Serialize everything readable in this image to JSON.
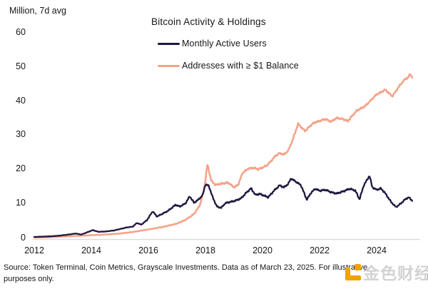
{
  "header": {
    "unit_label": "Million, 7d avg",
    "title": "Bitcoin Activity & Holdings"
  },
  "legend": {
    "items": [
      {
        "label": "Monthly Active Users",
        "color": "#201640"
      },
      {
        "label": "Addresses with ≥ $1 Balance",
        "color": "#f5a287"
      }
    ]
  },
  "footer": {
    "source": "Source: Token Terminal, Coin Metrics, Grayscale Investments. Data as of March 23, 2025. For illustrative purposes only."
  },
  "watermark": {
    "text": "金色财经",
    "logo_color": "#f1a208"
  },
  "chart_data": {
    "type": "line",
    "title": "Bitcoin Activity & Holdings",
    "ylabel": "Million, 7d avg",
    "xlabel": "",
    "grid": false,
    "legend_position": "top-center",
    "xlim": [
      2012,
      2025.4
    ],
    "ylim": [
      0,
      60
    ],
    "x_ticks": [
      2012,
      2014,
      2016,
      2018,
      2020,
      2022,
      2024
    ],
    "y_ticks": [
      0,
      10,
      20,
      30,
      40,
      50,
      60
    ],
    "axis_line_color": "#dcdcdc",
    "series": [
      {
        "name": "Monthly Active Users",
        "color": "#201640",
        "points": [
          [
            2012.0,
            0.3
          ],
          [
            2012.3,
            0.4
          ],
          [
            2012.6,
            0.5
          ],
          [
            2012.9,
            0.7
          ],
          [
            2013.2,
            1.0
          ],
          [
            2013.45,
            1.3
          ],
          [
            2013.65,
            1.0
          ],
          [
            2013.9,
            1.8
          ],
          [
            2014.05,
            2.3
          ],
          [
            2014.25,
            1.8
          ],
          [
            2014.5,
            1.9
          ],
          [
            2014.8,
            2.2
          ],
          [
            2015.0,
            2.6
          ],
          [
            2015.25,
            3.1
          ],
          [
            2015.45,
            3.3
          ],
          [
            2015.6,
            4.4
          ],
          [
            2015.75,
            3.9
          ],
          [
            2015.95,
            5.2
          ],
          [
            2016.15,
            7.8
          ],
          [
            2016.3,
            6.3
          ],
          [
            2016.5,
            7.1
          ],
          [
            2016.7,
            8.0
          ],
          [
            2016.85,
            9.0
          ],
          [
            2016.95,
            9.7
          ],
          [
            2017.1,
            9.2
          ],
          [
            2017.3,
            10.1
          ],
          [
            2017.45,
            12.2
          ],
          [
            2017.6,
            10.3
          ],
          [
            2017.75,
            11.2
          ],
          [
            2017.9,
            12.5
          ],
          [
            2018.0,
            15.7
          ],
          [
            2018.12,
            15.2
          ],
          [
            2018.25,
            12.0
          ],
          [
            2018.4,
            9.2
          ],
          [
            2018.55,
            8.8
          ],
          [
            2018.7,
            10.2
          ],
          [
            2018.9,
            10.6
          ],
          [
            2019.05,
            10.9
          ],
          [
            2019.25,
            11.6
          ],
          [
            2019.45,
            13.4
          ],
          [
            2019.6,
            14.5
          ],
          [
            2019.75,
            12.6
          ],
          [
            2019.9,
            12.9
          ],
          [
            2020.05,
            12.4
          ],
          [
            2020.2,
            11.9
          ],
          [
            2020.4,
            13.8
          ],
          [
            2020.6,
            15.4
          ],
          [
            2020.75,
            14.8
          ],
          [
            2020.9,
            15.8
          ],
          [
            2021.0,
            17.4
          ],
          [
            2021.2,
            16.3
          ],
          [
            2021.35,
            15.4
          ],
          [
            2021.55,
            11.2
          ],
          [
            2021.7,
            13.2
          ],
          [
            2021.85,
            14.4
          ],
          [
            2022.0,
            13.8
          ],
          [
            2022.2,
            14.1
          ],
          [
            2022.4,
            13.4
          ],
          [
            2022.6,
            13.0
          ],
          [
            2022.85,
            13.7
          ],
          [
            2023.05,
            14.4
          ],
          [
            2023.25,
            13.9
          ],
          [
            2023.4,
            11.3
          ],
          [
            2023.55,
            15.4
          ],
          [
            2023.75,
            18.2
          ],
          [
            2023.85,
            14.8
          ],
          [
            2024.0,
            14.1
          ],
          [
            2024.15,
            14.5
          ],
          [
            2024.3,
            13.1
          ],
          [
            2024.5,
            10.6
          ],
          [
            2024.68,
            9.0
          ],
          [
            2024.85,
            10.1
          ],
          [
            2025.0,
            11.3
          ],
          [
            2025.12,
            11.9
          ],
          [
            2025.25,
            10.9
          ]
        ]
      },
      {
        "name": "Addresses with ≥ $1 Balance",
        "color": "#f5a287",
        "points": [
          [
            2012.0,
            0.1
          ],
          [
            2012.5,
            0.2
          ],
          [
            2013.0,
            0.4
          ],
          [
            2013.5,
            0.6
          ],
          [
            2014.0,
            0.8
          ],
          [
            2014.5,
            1.0
          ],
          [
            2015.0,
            1.3
          ],
          [
            2015.5,
            1.8
          ],
          [
            2016.0,
            2.5
          ],
          [
            2016.5,
            3.2
          ],
          [
            2017.0,
            4.2
          ],
          [
            2017.3,
            5.3
          ],
          [
            2017.6,
            7.0
          ],
          [
            2017.8,
            9.5
          ],
          [
            2017.95,
            14.0
          ],
          [
            2018.07,
            21.6
          ],
          [
            2018.2,
            16.8
          ],
          [
            2018.35,
            15.5
          ],
          [
            2018.5,
            15.8
          ],
          [
            2018.65,
            16.0
          ],
          [
            2018.8,
            16.2
          ],
          [
            2019.0,
            14.8
          ],
          [
            2019.15,
            15.6
          ],
          [
            2019.3,
            19.0
          ],
          [
            2019.5,
            20.3
          ],
          [
            2019.7,
            20.5
          ],
          [
            2019.85,
            20.1
          ],
          [
            2020.0,
            20.6
          ],
          [
            2020.15,
            21.2
          ],
          [
            2020.3,
            22.5
          ],
          [
            2020.45,
            24.0
          ],
          [
            2020.6,
            24.8
          ],
          [
            2020.75,
            24.4
          ],
          [
            2020.9,
            25.5
          ],
          [
            2021.05,
            28.5
          ],
          [
            2021.15,
            31.0
          ],
          [
            2021.25,
            33.4
          ],
          [
            2021.4,
            32.0
          ],
          [
            2021.5,
            31.3
          ],
          [
            2021.65,
            32.6
          ],
          [
            2021.8,
            33.7
          ],
          [
            2022.0,
            34.2
          ],
          [
            2022.2,
            34.8
          ],
          [
            2022.4,
            34.0
          ],
          [
            2022.6,
            35.1
          ],
          [
            2022.8,
            34.8
          ],
          [
            2023.0,
            34.2
          ],
          [
            2023.15,
            35.8
          ],
          [
            2023.3,
            37.2
          ],
          [
            2023.6,
            38.6
          ],
          [
            2023.8,
            40.3
          ],
          [
            2024.0,
            42.0
          ],
          [
            2024.15,
            42.6
          ],
          [
            2024.3,
            43.4
          ],
          [
            2024.55,
            41.4
          ],
          [
            2024.8,
            44.5
          ],
          [
            2025.0,
            46.5
          ],
          [
            2025.1,
            46.9
          ],
          [
            2025.17,
            47.9
          ],
          [
            2025.25,
            47.0
          ]
        ]
      }
    ]
  }
}
